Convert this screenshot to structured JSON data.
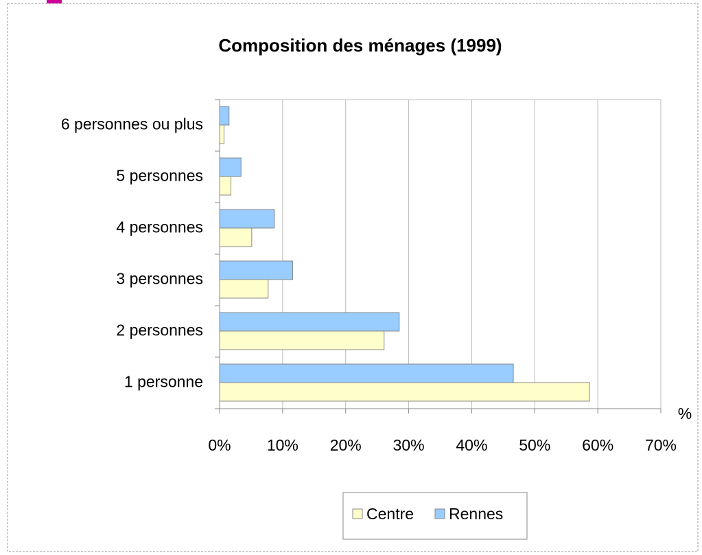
{
  "chart_data": {
    "type": "hbar",
    "title": "Composition des ménages (1999)",
    "categories": [
      "1 personne",
      "2 personnes",
      "3 personnes",
      "4 personnes",
      "5 personnes",
      "6 personnes ou plus"
    ],
    "series": [
      {
        "name": "Centre",
        "color": "#ffffcc",
        "values": [
          58.7,
          26.1,
          7.7,
          5.1,
          1.8,
          0.7
        ]
      },
      {
        "name": "Rennes",
        "color": "#99ccff",
        "values": [
          46.6,
          28.5,
          11.6,
          8.7,
          3.4,
          1.5
        ]
      }
    ],
    "x_label": "%",
    "xlim": [
      0,
      70
    ],
    "xticks": [
      {
        "value": 0,
        "label": "0%"
      },
      {
        "value": 10,
        "label": "10%"
      },
      {
        "value": 20,
        "label": "20%"
      },
      {
        "value": 30,
        "label": "30%"
      },
      {
        "value": 40,
        "label": "40%"
      },
      {
        "value": 50,
        "label": "50%"
      },
      {
        "value": 60,
        "label": "60%"
      },
      {
        "value": 70,
        "label": "70%"
      }
    ],
    "grid": true,
    "legend": "bottom"
  }
}
